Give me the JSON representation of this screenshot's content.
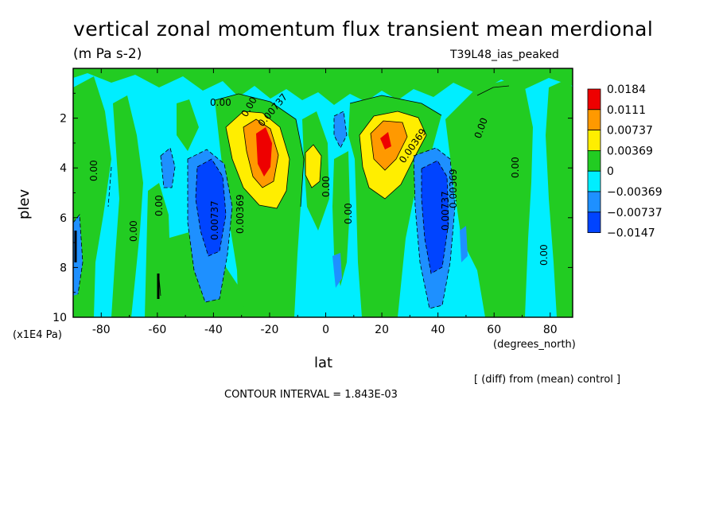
{
  "chart_data": {
    "type": "heatmap",
    "title": "vertical zonal momentum flux transient mean merdional",
    "subtitle": "(m Pa s-2)",
    "experiment": "T39L48_ias_peaked",
    "xlabel": "lat",
    "ylabel": "plev",
    "x_units": "(degrees_north)",
    "y_units": "(x1E4 Pa)",
    "xlim": [
      -90,
      88
    ],
    "ylim": [
      10,
      0
    ],
    "x_ticks": [
      "-80",
      "-60",
      "-40",
      "-20",
      "0",
      "20",
      "40",
      "60",
      "80"
    ],
    "y_ticks": [
      "2",
      "4",
      "6",
      "8",
      "10"
    ],
    "legend": {
      "placement": "right",
      "levels": [
        "0.0184",
        "0.0111",
        "0.00737",
        "0.00369",
        "0",
        "−0.00369",
        "−0.00737",
        "−0.0147"
      ],
      "colors": [
        "#ee0000",
        "#ff9900",
        "#ffee00",
        "#22cc22",
        "#00eeff",
        "#1e90ff",
        "#0044ff"
      ]
    },
    "contour_labels": [
      "0.00",
      "0.00",
      "0.00",
      "0.00",
      "0.00",
      "0.00",
      "0.00",
      "0.00",
      "0.00",
      "0.00",
      "0.00369",
      "0.00369",
      "0.00737",
      "0.00737",
      "0.00737",
      "0.00369"
    ],
    "features": [
      {
        "lat": -40,
        "plev": 5.5,
        "value": -0.0147
      },
      {
        "lat": -20,
        "plev": 3.3,
        "value": 0.0184
      },
      {
        "lat": 22,
        "plev": 3.0,
        "value": 0.0184
      },
      {
        "lat": 40,
        "plev": 6.0,
        "value": -0.0147
      },
      {
        "lat": -5,
        "plev": 3.8,
        "value": 0.00737
      }
    ],
    "notes": {
      "diff": "[ (diff) from (mean) control ]",
      "interval": "CONTOUR INTERVAL = 1.843E-03"
    }
  }
}
